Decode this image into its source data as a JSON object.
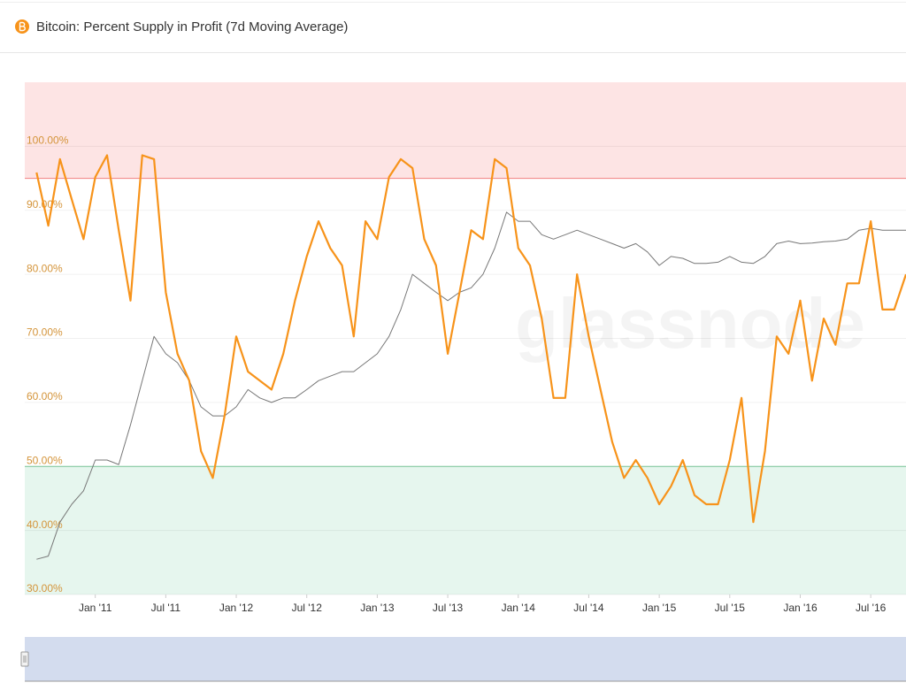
{
  "chart_data": {
    "type": "line",
    "title": "Bitcoin: Percent Supply in Profit (7d Moving Average)",
    "watermark": "glassnode",
    "x": [
      "2010-08",
      "2010-09",
      "2010-10",
      "2010-11",
      "2010-12",
      "2011-01",
      "2011-02",
      "2011-03",
      "2011-04",
      "2011-05",
      "2011-06",
      "2011-07",
      "2011-08",
      "2011-09",
      "2011-10",
      "2011-11",
      "2011-12",
      "2012-01",
      "2012-02",
      "2012-03",
      "2012-04",
      "2012-05",
      "2012-06",
      "2012-07",
      "2012-08",
      "2012-09",
      "2012-10",
      "2012-11",
      "2012-12",
      "2013-01",
      "2013-02",
      "2013-03",
      "2013-04",
      "2013-05",
      "2013-06",
      "2013-07",
      "2013-08",
      "2013-09",
      "2013-10",
      "2013-11",
      "2013-12",
      "2014-01",
      "2014-02",
      "2014-03",
      "2014-04",
      "2014-05",
      "2014-06",
      "2014-07",
      "2014-08",
      "2014-09",
      "2014-10",
      "2014-11",
      "2014-12",
      "2015-01",
      "2015-02",
      "2015-03",
      "2015-04",
      "2015-05",
      "2015-06",
      "2015-07",
      "2015-08",
      "2015-09",
      "2015-10",
      "2015-11",
      "2015-12",
      "2016-01",
      "2016-02",
      "2016-03",
      "2016-04",
      "2016-05",
      "2016-06",
      "2016-07",
      "2016-08",
      "2016-09",
      "2016-10"
    ],
    "series": [
      {
        "color": "#f7931a",
        "width": 2.2,
        "values": [
          95.9,
          87.6,
          98,
          91.7,
          85.5,
          95.2,
          98.6,
          86.9,
          75.9,
          98.6,
          98,
          77.2,
          67.6,
          63.4,
          52.4,
          48.2,
          57.9,
          70.3,
          64.8,
          63.4,
          62,
          67.6,
          75.9,
          82.8,
          88.3,
          84.1,
          81.4,
          70.3,
          88.3,
          85.5,
          95.2,
          98,
          96.6,
          85.5,
          81.4,
          67.6,
          77.2,
          86.9,
          85.5,
          98,
          96.6,
          84.1,
          81.4,
          73.1,
          60.7,
          60.7,
          80,
          70.3,
          62,
          53.8,
          48.2,
          51,
          48.2,
          44.1,
          46.9,
          51,
          45.5,
          44.1,
          44.1,
          51,
          60.7,
          41.3,
          52.4,
          70.3,
          67.6,
          75.9,
          63.4,
          73.1,
          69,
          78.6,
          78.6,
          88.3,
          74.5,
          74.5,
          80
        ]
      },
      {
        "color": "#777777",
        "width": 1,
        "values": [
          35.5,
          36,
          41.3,
          44.1,
          46.2,
          51,
          51,
          50.3,
          56.5,
          63.4,
          70.3,
          67.6,
          66.2,
          63.4,
          59.3,
          57.9,
          57.9,
          59.3,
          62,
          60.7,
          60,
          60.7,
          60.7,
          62,
          63.4,
          64.1,
          64.8,
          64.8,
          66.2,
          67.6,
          70.3,
          74.5,
          80,
          78.6,
          77.2,
          75.9,
          77.2,
          77.9,
          80,
          84.1,
          89.7,
          88.3,
          88.3,
          86.2,
          85.5,
          86.2,
          86.9,
          86.2,
          85.5,
          84.8,
          84.1,
          84.8,
          83.5,
          81.4,
          82.8,
          82.5,
          81.7,
          81.7,
          81.9,
          82.8,
          81.9,
          81.7,
          82.8,
          84.8,
          85.2,
          84.8,
          84.9,
          85.1,
          85.2,
          85.5,
          86.9,
          87.2,
          86.9,
          86.9,
          86.9
        ]
      }
    ],
    "xlim": [
      "2010-07",
      "2016-10"
    ],
    "xticks": [
      {
        "value": "2011-01",
        "label": "Jan '11"
      },
      {
        "value": "2011-07",
        "label": "Jul '11"
      },
      {
        "value": "2012-01",
        "label": "Jan '12"
      },
      {
        "value": "2012-07",
        "label": "Jul '12"
      },
      {
        "value": "2013-01",
        "label": "Jan '13"
      },
      {
        "value": "2013-07",
        "label": "Jul '13"
      },
      {
        "value": "2014-01",
        "label": "Jan '14"
      },
      {
        "value": "2014-07",
        "label": "Jul '14"
      },
      {
        "value": "2015-01",
        "label": "Jan '15"
      },
      {
        "value": "2015-07",
        "label": "Jul '15"
      },
      {
        "value": "2016-01",
        "label": "Jan '16"
      },
      {
        "value": "2016-07",
        "label": "Jul '16"
      }
    ],
    "ylim": [
      30,
      110
    ],
    "yticks": [
      {
        "value": 30,
        "label": "30.00%"
      },
      {
        "value": 40,
        "label": "40.00%"
      },
      {
        "value": 50,
        "label": "50.00%"
      },
      {
        "value": 60,
        "label": "60.00%"
      },
      {
        "value": 70,
        "label": "70.00%"
      },
      {
        "value": 80,
        "label": "80.00%"
      },
      {
        "value": 90,
        "label": "90.00%"
      },
      {
        "value": 100,
        "label": "100.00%"
      }
    ],
    "grid": true,
    "bands": [
      {
        "from": 95,
        "to": 110,
        "color": "#fde4e4",
        "line": "#f08080",
        "edge": 95
      },
      {
        "from": 30,
        "to": 50,
        "color": "#e6f6ee",
        "line": "#7fcf9f",
        "edge": 50
      }
    ]
  }
}
